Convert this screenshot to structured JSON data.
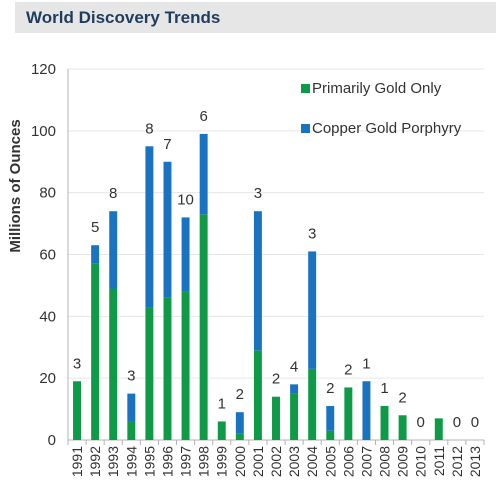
{
  "title": "World Discovery Trends",
  "chart_data": {
    "type": "bar",
    "stacked": true,
    "title": "World Discovery Trends",
    "xlabel": "",
    "ylabel": "Millions of Ounces",
    "ylim": [
      0,
      120
    ],
    "yticks": [
      0,
      20,
      40,
      60,
      80,
      100,
      120
    ],
    "grid": true,
    "legend_placement": "top-right",
    "categories": [
      "1991",
      "1992",
      "1993",
      "1994",
      "1995",
      "1996",
      "1997",
      "1998",
      "1999",
      "2000",
      "2001",
      "2002",
      "2003",
      "2004",
      "2005",
      "2006",
      "2007",
      "2008",
      "2009",
      "2010",
      "2011",
      "2012",
      "2013"
    ],
    "series": [
      {
        "name": "Primarily Gold Only",
        "color": "#0f9a48",
        "values": [
          19,
          57,
          49,
          6,
          43,
          46,
          48,
          73,
          6,
          2,
          29,
          14,
          15,
          23,
          3,
          17,
          0,
          11,
          8,
          0,
          7,
          0,
          0
        ]
      },
      {
        "name": "Copper Gold Porphyry",
        "color": "#1a73c0",
        "values": [
          0,
          6,
          25,
          9,
          52,
          44,
          24,
          26,
          0,
          7,
          45,
          0,
          3,
          38,
          8,
          0,
          19,
          0,
          0,
          0,
          0,
          0,
          0
        ]
      }
    ],
    "annotations": [
      "3",
      "5",
      "8",
      "3",
      "8",
      "7",
      "10",
      "6",
      "1",
      "2",
      "3",
      "2",
      "4",
      "3",
      "2",
      "2",
      "1",
      "1",
      "2",
      "0",
      "",
      "0",
      "0"
    ]
  }
}
